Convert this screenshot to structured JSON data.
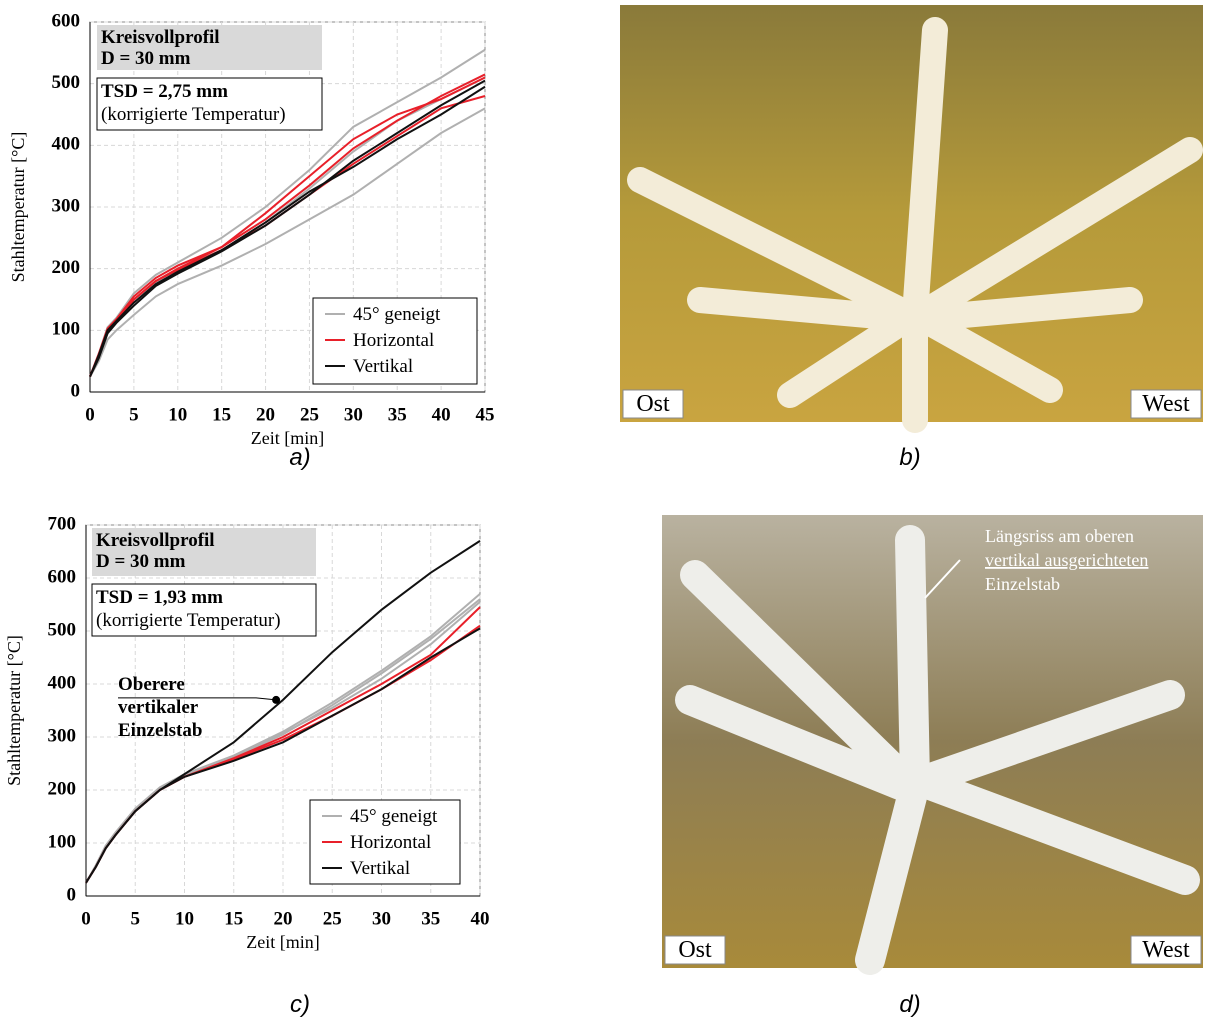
{
  "chart_data": [
    {
      "type": "line",
      "caption": "a)",
      "xlabel": "Zeit [min]",
      "ylabel": "Stahltemperatur [°C]",
      "box1": [
        "Kreisvollprofil",
        "D = 30 mm"
      ],
      "box2": [
        "TSD = 2,75 mm",
        "(korrigierte Temperatur)"
      ],
      "xlim": [
        0,
        45
      ],
      "ylim": [
        0,
        600
      ],
      "xticks": [
        0,
        5,
        10,
        15,
        20,
        25,
        30,
        35,
        40,
        45
      ],
      "yticks": [
        0,
        100,
        200,
        300,
        400,
        500,
        600
      ],
      "x": [
        0,
        1,
        2,
        3,
        5,
        7.5,
        10,
        15,
        20,
        25,
        30,
        35,
        40,
        45
      ],
      "series": [
        {
          "name": "45° geneigt",
          "color": "#b0b0b0",
          "values": [
            25,
            62,
            105,
            120,
            160,
            190,
            210,
            250,
            300,
            360,
            430,
            470,
            510,
            555
          ]
        },
        {
          "name": "45° geneigt",
          "color": "#b0b0b0",
          "values": [
            25,
            50,
            85,
            100,
            125,
            155,
            175,
            205,
            240,
            280,
            320,
            370,
            420,
            460
          ]
        },
        {
          "name": "45° geneigt",
          "color": "#b0b0b0",
          "values": [
            25,
            60,
            100,
            115,
            150,
            178,
            200,
            230,
            275,
            330,
            390,
            440,
            475,
            510
          ]
        },
        {
          "name": "Horizontal",
          "color": "#e8202a",
          "values": [
            25,
            60,
            100,
            115,
            150,
            180,
            200,
            235,
            290,
            350,
            410,
            450,
            475,
            510
          ]
        },
        {
          "name": "Horizontal",
          "color": "#e8202a",
          "values": [
            25,
            58,
            98,
            113,
            150,
            180,
            198,
            230,
            270,
            320,
            370,
            415,
            460,
            480
          ]
        },
        {
          "name": "Horizontal",
          "color": "#e8202a",
          "values": [
            25,
            62,
            103,
            118,
            155,
            185,
            205,
            235,
            280,
            335,
            395,
            440,
            480,
            515
          ]
        },
        {
          "name": "Vertikal",
          "color": "#111111",
          "values": [
            25,
            60,
            100,
            115,
            145,
            175,
            195,
            230,
            275,
            325,
            365,
            410,
            450,
            495
          ]
        },
        {
          "name": "Vertikal",
          "color": "#111111",
          "values": [
            25,
            55,
            95,
            112,
            140,
            172,
            192,
            228,
            270,
            320,
            375,
            420,
            465,
            505
          ]
        }
      ]
    },
    {
      "type": "line",
      "caption": "c)",
      "xlabel": "Zeit [min]",
      "ylabel": "Stahltemperatur [°C]",
      "box1": [
        "Kreisvollprofil",
        "D = 30 mm"
      ],
      "box2": [
        "TSD = 1,93 mm",
        "(korrigierte Temperatur)"
      ],
      "annotation": {
        "lines": [
          "Oberere",
          "vertikaler",
          "Einzelstab"
        ],
        "x": 19.3,
        "y": 370
      },
      "xlim": [
        0,
        40
      ],
      "ylim": [
        0,
        700
      ],
      "xticks": [
        0,
        5,
        10,
        15,
        20,
        25,
        30,
        35,
        40
      ],
      "yticks": [
        0,
        100,
        200,
        300,
        400,
        500,
        600,
        700
      ],
      "x": [
        0,
        1,
        2,
        3,
        5,
        7.5,
        10,
        15,
        20,
        25,
        30,
        35,
        40
      ],
      "series": [
        {
          "name": "45° geneigt",
          "color": "#b0b0b0",
          "values": [
            25,
            58,
            95,
            120,
            165,
            205,
            230,
            265,
            310,
            365,
            425,
            490,
            570
          ]
        },
        {
          "name": "45° geneigt",
          "color": "#b0b0b0",
          "values": [
            25,
            56,
            92,
            118,
            162,
            202,
            228,
            262,
            305,
            360,
            420,
            485,
            560
          ]
        },
        {
          "name": "45° geneigt",
          "color": "#b0b0b0",
          "values": [
            25,
            57,
            93,
            119,
            163,
            203,
            229,
            263,
            307,
            355,
            410,
            475,
            555
          ]
        },
        {
          "name": "Horizontal",
          "color": "#e8202a",
          "values": [
            25,
            55,
            90,
            115,
            160,
            200,
            225,
            260,
            300,
            350,
            400,
            455,
            545
          ]
        },
        {
          "name": "Horizontal",
          "color": "#e8202a",
          "values": [
            25,
            55,
            90,
            115,
            160,
            200,
            225,
            258,
            295,
            340,
            390,
            445,
            510
          ]
        },
        {
          "name": "Vertikal",
          "color": "#111111",
          "values": [
            25,
            55,
            90,
            115,
            160,
            200,
            230,
            290,
            370,
            460,
            540,
            610,
            670
          ]
        },
        {
          "name": "Vertikal",
          "color": "#111111",
          "values": [
            25,
            55,
            90,
            115,
            160,
            200,
            225,
            255,
            290,
            340,
            390,
            450,
            505
          ]
        }
      ]
    }
  ],
  "photos": [
    {
      "caption": "b)",
      "left_label": "Ost",
      "right_label": "West"
    },
    {
      "caption": "d)",
      "left_label": "Ost",
      "right_label": "West",
      "annotation": [
        "Längsriss am oberen",
        "vertikal ausgerichteten",
        "Einzelstab"
      ]
    }
  ]
}
